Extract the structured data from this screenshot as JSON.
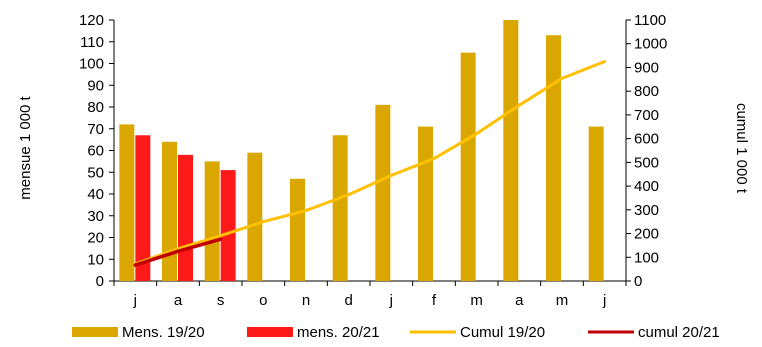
{
  "chart_data": {
    "type": "bar",
    "categories": [
      "j",
      "a",
      "s",
      "o",
      "n",
      "d",
      "j",
      "f",
      "m",
      "a",
      "m",
      "j"
    ],
    "series": [
      {
        "name": "Mens. 19/20",
        "kind": "bar",
        "axis": "left",
        "color": "#DAA600",
        "values": [
          72,
          64,
          55,
          59,
          47,
          67,
          81,
          71,
          105,
          120,
          113,
          71
        ]
      },
      {
        "name": "mens. 20/21",
        "kind": "bar",
        "axis": "left",
        "color": "#FF1A1A",
        "values": [
          67,
          58,
          51,
          null,
          null,
          null,
          null,
          null,
          null,
          null,
          null,
          null
        ]
      },
      {
        "name": "Cumul 19/20",
        "kind": "line",
        "axis": "right",
        "color": "#FFC000",
        "values": [
          72,
          136,
          191,
          250,
          297,
          364,
          445,
          516,
          621,
          741,
          854,
          925
        ]
      },
      {
        "name": "cumul 20/21",
        "kind": "line",
        "axis": "right",
        "color": "#C00000",
        "values": [
          67,
          125,
          176,
          null,
          null,
          null,
          null,
          null,
          null,
          null,
          null,
          null
        ]
      }
    ],
    "ylabel": "mensue 1 000 t",
    "y2label": "cumul 1 000 t",
    "ylim": [
      0,
      120
    ],
    "y2lim": [
      0,
      1100
    ],
    "yticks": [
      0,
      10,
      20,
      30,
      40,
      50,
      60,
      70,
      80,
      90,
      100,
      110,
      120
    ],
    "y2ticks": [
      0,
      100,
      200,
      300,
      400,
      500,
      600,
      700,
      800,
      900,
      1000,
      1100
    ],
    "grid": false,
    "legend": "bottom"
  }
}
